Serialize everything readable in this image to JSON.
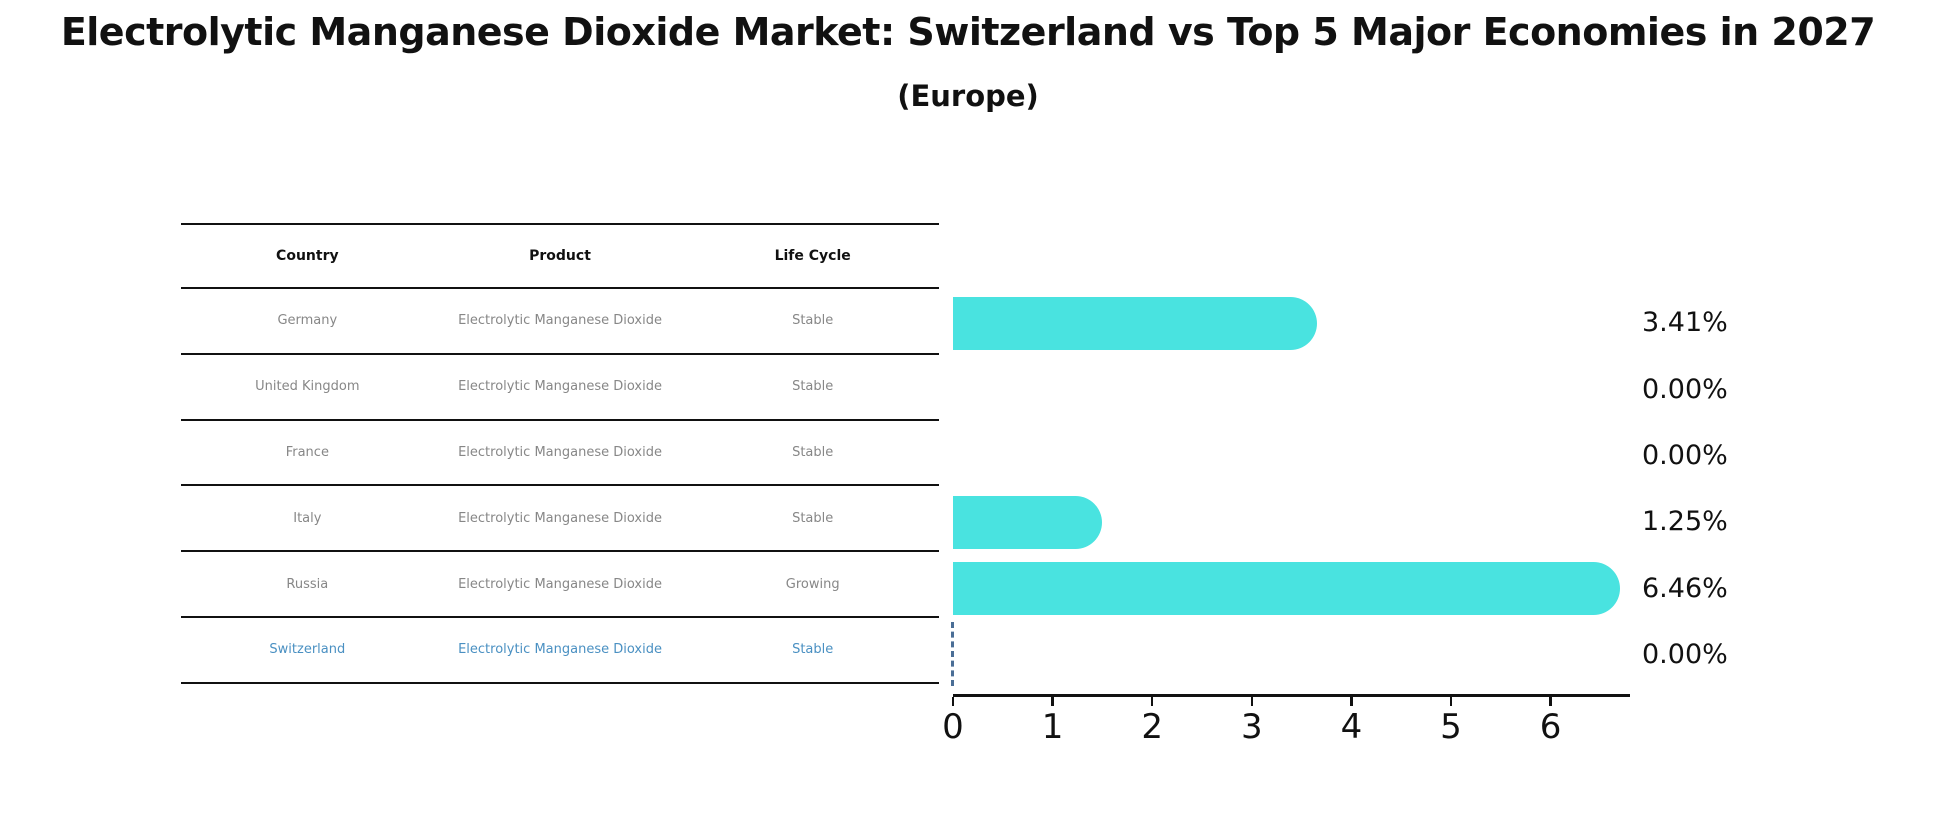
{
  "title": "Electrolytic Manganese Dioxide Market: Switzerland vs Top 5 Major Economies in 2027",
  "subtitle": "(Europe)",
  "table": {
    "headers": [
      "Country",
      "Product",
      "Life Cycle"
    ],
    "rows": [
      {
        "country": "Germany",
        "product": "Electrolytic Manganese Dioxide",
        "life_cycle": "Stable",
        "highlight": false
      },
      {
        "country": "United Kingdom",
        "product": "Electrolytic Manganese Dioxide",
        "life_cycle": "Stable",
        "highlight": false
      },
      {
        "country": "France",
        "product": "Electrolytic Manganese Dioxide",
        "life_cycle": "Stable",
        "highlight": false
      },
      {
        "country": "Italy",
        "product": "Electrolytic Manganese Dioxide",
        "life_cycle": "Stable",
        "highlight": false
      },
      {
        "country": "Russia",
        "product": "Electrolytic Manganese Dioxide",
        "life_cycle": "Growing",
        "highlight": false
      },
      {
        "country": "Switzerland",
        "product": "Electrolytic Manganese Dioxide",
        "life_cycle": "Stable",
        "highlight": true
      }
    ]
  },
  "chart_data": {
    "type": "bar",
    "orientation": "horizontal",
    "title": "Electrolytic Manganese Dioxide Market: Switzerland vs Top 5 Major Economies in 2027 (Europe)",
    "categories": [
      "Germany",
      "United Kingdom",
      "France",
      "Italy",
      "Russia",
      "Switzerland"
    ],
    "values": [
      3.41,
      0.0,
      0.0,
      1.25,
      6.46,
      0.0
    ],
    "value_labels": [
      "3.41%",
      "0.00%",
      "0.00%",
      "1.25%",
      "6.46%",
      "0.00%"
    ],
    "xticks": [
      "0",
      "1",
      "2",
      "3",
      "4",
      "5",
      "6"
    ],
    "xlim": [
      0,
      6.8
    ],
    "xlabel": "",
    "ylabel": "",
    "grid": false,
    "legend": "none",
    "bar_color": "#49e3e0",
    "highlight_text_color": "#4a90c2",
    "zero_marker_color": "#4a6e96",
    "axis_color": "#111111"
  }
}
